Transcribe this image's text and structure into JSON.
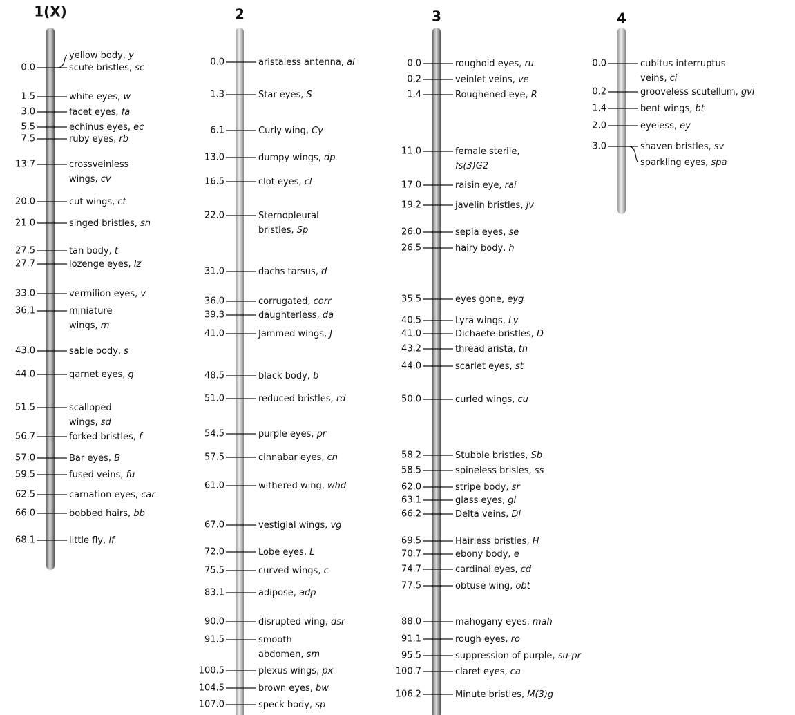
{
  "chromosomes": [
    {
      "title": "1(X)",
      "loci": [
        {
          "pos": "0.0",
          "genes": [
            {
              "name": [
                "yellow body,"
              ],
              "symbol": "y"
            },
            {
              "name": [
                "scute bristles,"
              ],
              "symbol": "sc"
            }
          ]
        },
        {
          "pos": "1.5",
          "genes": [
            {
              "name": [
                "white eyes,"
              ],
              "symbol": "w"
            }
          ]
        },
        {
          "pos": "3.0",
          "genes": [
            {
              "name": [
                "facet eyes,"
              ],
              "symbol": "fa"
            }
          ]
        },
        {
          "pos": "5.5",
          "genes": [
            {
              "name": [
                "echinus eyes,"
              ],
              "symbol": "ec"
            }
          ]
        },
        {
          "pos": "7.5",
          "genes": [
            {
              "name": [
                "ruby eyes,"
              ],
              "symbol": "rb"
            }
          ]
        },
        {
          "pos": "13.7",
          "genes": [
            {
              "name": [
                "crossveinless",
                "wings,"
              ],
              "symbol": "cv"
            }
          ]
        },
        {
          "pos": "20.0",
          "genes": [
            {
              "name": [
                "cut wings,"
              ],
              "symbol": "ct"
            }
          ]
        },
        {
          "pos": "21.0",
          "genes": [
            {
              "name": [
                "singed bristles,"
              ],
              "symbol": "sn"
            }
          ]
        },
        {
          "pos": "27.5",
          "genes": [
            {
              "name": [
                "tan body,"
              ],
              "symbol": "t"
            }
          ]
        },
        {
          "pos": "27.7",
          "genes": [
            {
              "name": [
                "lozenge eyes,"
              ],
              "symbol": "lz"
            }
          ]
        },
        {
          "pos": "33.0",
          "genes": [
            {
              "name": [
                "vermilion eyes,"
              ],
              "symbol": "v"
            }
          ]
        },
        {
          "pos": "36.1",
          "genes": [
            {
              "name": [
                "miniature",
                "wings,"
              ],
              "symbol": "m"
            }
          ]
        },
        {
          "pos": "43.0",
          "genes": [
            {
              "name": [
                "sable body,"
              ],
              "symbol": "s"
            }
          ]
        },
        {
          "pos": "44.0",
          "genes": [
            {
              "name": [
                "garnet eyes,"
              ],
              "symbol": "g"
            }
          ]
        },
        {
          "pos": "51.5",
          "genes": [
            {
              "name": [
                "scalloped",
                "wings,"
              ],
              "symbol": "sd"
            }
          ]
        },
        {
          "pos": "56.7",
          "genes": [
            {
              "name": [
                "forked bristles,"
              ],
              "symbol": "f"
            }
          ]
        },
        {
          "pos": "57.0",
          "genes": [
            {
              "name": [
                "Bar eyes,"
              ],
              "symbol": "B"
            }
          ]
        },
        {
          "pos": "59.5",
          "genes": [
            {
              "name": [
                "fused veins,"
              ],
              "symbol": "fu"
            }
          ]
        },
        {
          "pos": "62.5",
          "genes": [
            {
              "name": [
                "carnation eyes,"
              ],
              "symbol": "car"
            }
          ]
        },
        {
          "pos": "66.0",
          "genes": [
            {
              "name": [
                "bobbed hairs,"
              ],
              "symbol": "bb"
            }
          ]
        },
        {
          "pos": "68.1",
          "genes": [
            {
              "name": [
                "little fly,"
              ],
              "symbol": "lf"
            }
          ]
        }
      ]
    },
    {
      "title": "2",
      "loci": [
        {
          "pos": "0.0",
          "genes": [
            {
              "name": [
                "aristaless antenna,"
              ],
              "symbol": "al"
            }
          ]
        },
        {
          "pos": "1.3",
          "genes": [
            {
              "name": [
                "Star eyes,"
              ],
              "symbol": "S"
            }
          ]
        },
        {
          "pos": "6.1",
          "genes": [
            {
              "name": [
                "Curly wing,"
              ],
              "symbol": "Cy"
            }
          ]
        },
        {
          "pos": "13.0",
          "genes": [
            {
              "name": [
                "dumpy wings,"
              ],
              "symbol": "dp"
            }
          ]
        },
        {
          "pos": "16.5",
          "genes": [
            {
              "name": [
                "clot eyes,"
              ],
              "symbol": "cl"
            }
          ]
        },
        {
          "pos": "22.0",
          "genes": [
            {
              "name": [
                "Sternopleural",
                "bristles,"
              ],
              "symbol": "Sp"
            }
          ]
        },
        {
          "pos": "31.0",
          "genes": [
            {
              "name": [
                "dachs tarsus,"
              ],
              "symbol": "d"
            }
          ]
        },
        {
          "pos": "36.0",
          "genes": [
            {
              "name": [
                "corrugated,"
              ],
              "symbol": "corr"
            }
          ]
        },
        {
          "pos": "39.3",
          "genes": [
            {
              "name": [
                "daughterless,"
              ],
              "symbol": "da"
            }
          ]
        },
        {
          "pos": "41.0",
          "genes": [
            {
              "name": [
                "Jammed wings,"
              ],
              "symbol": "J"
            }
          ]
        },
        {
          "pos": "48.5",
          "genes": [
            {
              "name": [
                "black body,"
              ],
              "symbol": "b"
            }
          ]
        },
        {
          "pos": "51.0",
          "genes": [
            {
              "name": [
                "reduced bristles,"
              ],
              "symbol": "rd"
            }
          ]
        },
        {
          "pos": "54.5",
          "genes": [
            {
              "name": [
                "purple eyes,"
              ],
              "symbol": "pr"
            }
          ]
        },
        {
          "pos": "57.5",
          "genes": [
            {
              "name": [
                "cinnabar eyes,"
              ],
              "symbol": "cn"
            }
          ]
        },
        {
          "pos": "61.0",
          "genes": [
            {
              "name": [
                "withered wing,"
              ],
              "symbol": "whd"
            }
          ]
        },
        {
          "pos": "67.0",
          "genes": [
            {
              "name": [
                "vestigial wings,"
              ],
              "symbol": "vg"
            }
          ]
        },
        {
          "pos": "72.0",
          "genes": [
            {
              "name": [
                "Lobe eyes,"
              ],
              "symbol": "L"
            }
          ]
        },
        {
          "pos": "75.5",
          "genes": [
            {
              "name": [
                "curved wings,"
              ],
              "symbol": "c"
            }
          ]
        },
        {
          "pos": "83.1",
          "genes": [
            {
              "name": [
                "adipose,"
              ],
              "symbol": "adp"
            }
          ]
        },
        {
          "pos": "90.0",
          "genes": [
            {
              "name": [
                "disrupted wing,"
              ],
              "symbol": "dsr"
            }
          ]
        },
        {
          "pos": "91.5",
          "genes": [
            {
              "name": [
                "smooth",
                "abdomen,"
              ],
              "symbol": "sm"
            }
          ]
        },
        {
          "pos": "100.5",
          "genes": [
            {
              "name": [
                "plexus wings,"
              ],
              "symbol": "px"
            }
          ]
        },
        {
          "pos": "104.5",
          "genes": [
            {
              "name": [
                "brown eyes,"
              ],
              "symbol": "bw"
            }
          ]
        },
        {
          "pos": "107.0",
          "genes": [
            {
              "name": [
                "speck body,"
              ],
              "symbol": "sp"
            }
          ]
        }
      ]
    },
    {
      "title": "3",
      "loci": [
        {
          "pos": "0.0",
          "genes": [
            {
              "name": [
                "roughoid eyes,"
              ],
              "symbol": "ru"
            }
          ]
        },
        {
          "pos": "0.2",
          "genes": [
            {
              "name": [
                "veinlet veins,"
              ],
              "symbol": "ve"
            }
          ]
        },
        {
          "pos": "1.4",
          "genes": [
            {
              "name": [
                "Roughened eye,"
              ],
              "symbol": "R"
            }
          ]
        },
        {
          "pos": "11.0",
          "genes": [
            {
              "name": [
                "female sterile,",
                ""
              ],
              "symbol": "fs(3)G2"
            }
          ]
        },
        {
          "pos": "17.0",
          "genes": [
            {
              "name": [
                "raisin eye,"
              ],
              "symbol": "rai"
            }
          ]
        },
        {
          "pos": "19.2",
          "genes": [
            {
              "name": [
                "javelin bristles,"
              ],
              "symbol": "jv"
            }
          ]
        },
        {
          "pos": "26.0",
          "genes": [
            {
              "name": [
                "sepia eyes,"
              ],
              "symbol": "se"
            }
          ]
        },
        {
          "pos": "26.5",
          "genes": [
            {
              "name": [
                "hairy body,"
              ],
              "symbol": "h"
            }
          ]
        },
        {
          "pos": "35.5",
          "genes": [
            {
              "name": [
                "eyes gone,"
              ],
              "symbol": "eyg"
            }
          ]
        },
        {
          "pos": "40.5",
          "genes": [
            {
              "name": [
                "Lyra wings,"
              ],
              "symbol": "Ly"
            }
          ]
        },
        {
          "pos": "41.0",
          "genes": [
            {
              "name": [
                "Dichaete bristles,"
              ],
              "symbol": "D"
            }
          ]
        },
        {
          "pos": "43.2",
          "genes": [
            {
              "name": [
                "thread arista,"
              ],
              "symbol": "th"
            }
          ]
        },
        {
          "pos": "44.0",
          "genes": [
            {
              "name": [
                "scarlet eyes,"
              ],
              "symbol": "st"
            }
          ]
        },
        {
          "pos": "50.0",
          "genes": [
            {
              "name": [
                "curled wings,"
              ],
              "symbol": "cu"
            }
          ]
        },
        {
          "pos": "58.2",
          "genes": [
            {
              "name": [
                "Stubble bristles,"
              ],
              "symbol": "Sb"
            }
          ]
        },
        {
          "pos": "58.5",
          "genes": [
            {
              "name": [
                "spineless brisles,"
              ],
              "symbol": "ss"
            }
          ]
        },
        {
          "pos": "62.0",
          "genes": [
            {
              "name": [
                "stripe body,"
              ],
              "symbol": "sr"
            }
          ]
        },
        {
          "pos": "63.1",
          "genes": [
            {
              "name": [
                "glass eyes,"
              ],
              "symbol": "gl"
            }
          ]
        },
        {
          "pos": "66.2",
          "genes": [
            {
              "name": [
                "Delta veins,"
              ],
              "symbol": "Dl"
            }
          ]
        },
        {
          "pos": "69.5",
          "genes": [
            {
              "name": [
                "Hairless bristles,"
              ],
              "symbol": "H"
            }
          ]
        },
        {
          "pos": "70.7",
          "genes": [
            {
              "name": [
                "ebony body,"
              ],
              "symbol": "e"
            }
          ]
        },
        {
          "pos": "74.7",
          "genes": [
            {
              "name": [
                "cardinal eyes,"
              ],
              "symbol": "cd"
            }
          ]
        },
        {
          "pos": "77.5",
          "genes": [
            {
              "name": [
                "obtuse wing,"
              ],
              "symbol": "obt"
            }
          ]
        },
        {
          "pos": "88.0",
          "genes": [
            {
              "name": [
                "mahogany eyes,"
              ],
              "symbol": "mah"
            }
          ]
        },
        {
          "pos": "91.1",
          "genes": [
            {
              "name": [
                "rough eyes,"
              ],
              "symbol": "ro"
            }
          ]
        },
        {
          "pos": "95.5",
          "genes": [
            {
              "name": [
                "suppression of purple,"
              ],
              "symbol": "su-pr"
            }
          ]
        },
        {
          "pos": "100.7",
          "genes": [
            {
              "name": [
                "claret eyes,"
              ],
              "symbol": "ca"
            }
          ]
        },
        {
          "pos": "106.2",
          "genes": [
            {
              "name": [
                "Minute bristles,"
              ],
              "symbol": "M(3)g"
            }
          ]
        }
      ]
    },
    {
      "title": "4",
      "loci": [
        {
          "pos": "0.0",
          "genes": [
            {
              "name": [
                "cubitus interruptus",
                "veins,"
              ],
              "symbol": "ci"
            }
          ]
        },
        {
          "pos": "0.2",
          "genes": [
            {
              "name": [
                "grooveless scutellum,"
              ],
              "symbol": "gvl"
            }
          ]
        },
        {
          "pos": "1.4",
          "genes": [
            {
              "name": [
                "bent wings,"
              ],
              "symbol": "bt"
            }
          ]
        },
        {
          "pos": "2.0",
          "genes": [
            {
              "name": [
                "eyeless,"
              ],
              "symbol": "ey"
            }
          ]
        },
        {
          "pos": "3.0",
          "genes": [
            {
              "name": [
                "shaven bristles,"
              ],
              "symbol": "sv"
            },
            {
              "name": [
                "sparkling eyes,"
              ],
              "symbol": "spa"
            }
          ]
        }
      ]
    }
  ]
}
